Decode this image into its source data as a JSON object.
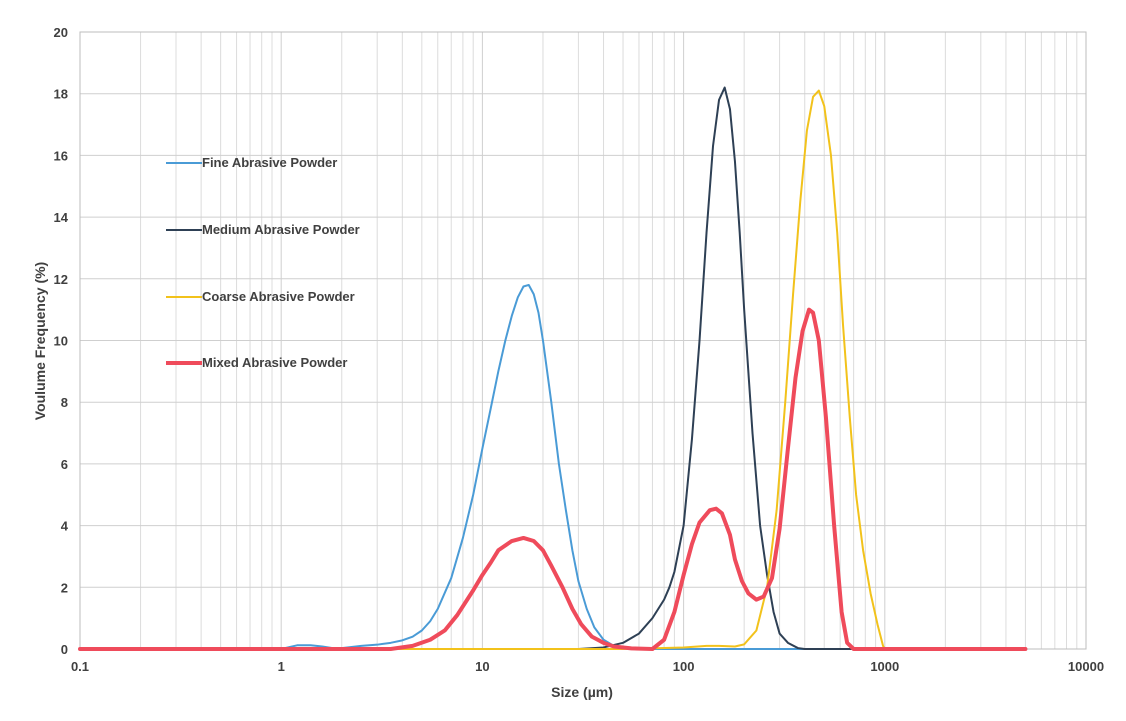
{
  "chart_data": {
    "type": "line",
    "title": "",
    "xlabel": "Size (µm)",
    "ylabel": "Voulume Frequency (%)",
    "x_scale": "log",
    "xlim": [
      0.1,
      10000
    ],
    "ylim": [
      0,
      20
    ],
    "x_ticks": [
      "0.1",
      "1",
      "10",
      "100",
      "1000",
      "10000"
    ],
    "y_ticks": [
      "0",
      "2",
      "4",
      "6",
      "8",
      "10",
      "12",
      "14",
      "16",
      "18",
      "20"
    ],
    "grid": true,
    "legend_position": "upper-left",
    "series": [
      {
        "name": "Fine Abrasive Powder",
        "color": "#4a9bd6",
        "points": [
          [
            0.1,
            0
          ],
          [
            1.0,
            0
          ],
          [
            1.2,
            0.12
          ],
          [
            1.4,
            0.12
          ],
          [
            1.6,
            0.08
          ],
          [
            1.8,
            0.03
          ],
          [
            2.0,
            0.03
          ],
          [
            2.5,
            0.1
          ],
          [
            3.0,
            0.14
          ],
          [
            3.5,
            0.2
          ],
          [
            4.0,
            0.28
          ],
          [
            4.5,
            0.4
          ],
          [
            5.0,
            0.6
          ],
          [
            5.5,
            0.9
          ],
          [
            6.0,
            1.3
          ],
          [
            7.0,
            2.3
          ],
          [
            8.0,
            3.6
          ],
          [
            9.0,
            5.0
          ],
          [
            10.0,
            6.5
          ],
          [
            11.0,
            7.8
          ],
          [
            12.0,
            9.0
          ],
          [
            13.0,
            10.0
          ],
          [
            14.0,
            10.8
          ],
          [
            15.0,
            11.4
          ],
          [
            16.0,
            11.75
          ],
          [
            17.0,
            11.8
          ],
          [
            18.0,
            11.5
          ],
          [
            19.0,
            10.9
          ],
          [
            20.0,
            10.0
          ],
          [
            22.0,
            8.0
          ],
          [
            24.0,
            6.0
          ],
          [
            26.0,
            4.5
          ],
          [
            28.0,
            3.2
          ],
          [
            30.0,
            2.2
          ],
          [
            33.0,
            1.3
          ],
          [
            36.0,
            0.7
          ],
          [
            40.0,
            0.3
          ],
          [
            45.0,
            0.1
          ],
          [
            50.0,
            0.02
          ],
          [
            60.0,
            0
          ],
          [
            1000,
            0
          ]
        ]
      },
      {
        "name": "Medium Abrasive Powder",
        "color": "#2e4055",
        "points": [
          [
            0.1,
            0
          ],
          [
            30,
            0
          ],
          [
            40,
            0.05
          ],
          [
            50,
            0.2
          ],
          [
            60,
            0.5
          ],
          [
            70,
            1.0
          ],
          [
            80,
            1.6
          ],
          [
            85,
            2.0
          ],
          [
            90,
            2.5
          ],
          [
            100,
            4.0
          ],
          [
            110,
            6.8
          ],
          [
            120,
            10.0
          ],
          [
            130,
            13.5
          ],
          [
            140,
            16.3
          ],
          [
            150,
            17.8
          ],
          [
            160,
            18.2
          ],
          [
            170,
            17.5
          ],
          [
            180,
            15.8
          ],
          [
            190,
            13.5
          ],
          [
            200,
            11.0
          ],
          [
            220,
            7.0
          ],
          [
            240,
            4.0
          ],
          [
            260,
            2.4
          ],
          [
            280,
            1.2
          ],
          [
            300,
            0.5
          ],
          [
            330,
            0.2
          ],
          [
            370,
            0.03
          ],
          [
            400,
            0
          ],
          [
            5000,
            0
          ]
        ]
      },
      {
        "name": "Coarse Abrasive Powder",
        "color": "#f2c21b",
        "points": [
          [
            0.1,
            0
          ],
          [
            50,
            0
          ],
          [
            100,
            0.05
          ],
          [
            130,
            0.1
          ],
          [
            150,
            0.1
          ],
          [
            180,
            0.08
          ],
          [
            200,
            0.15
          ],
          [
            230,
            0.6
          ],
          [
            260,
            2.0
          ],
          [
            290,
            4.5
          ],
          [
            320,
            8.0
          ],
          [
            350,
            11.5
          ],
          [
            380,
            14.5
          ],
          [
            410,
            16.8
          ],
          [
            440,
            17.9
          ],
          [
            470,
            18.1
          ],
          [
            500,
            17.6
          ],
          [
            540,
            16.0
          ],
          [
            580,
            13.5
          ],
          [
            620,
            10.5
          ],
          [
            670,
            7.5
          ],
          [
            720,
            5.0
          ],
          [
            780,
            3.2
          ],
          [
            850,
            1.8
          ],
          [
            920,
            0.8
          ],
          [
            980,
            0.1
          ],
          [
            1000,
            0
          ]
        ]
      },
      {
        "name": "Mixed Abrasive Powder",
        "color": "#ef4b5b",
        "points": [
          [
            0.1,
            0
          ],
          [
            3.5,
            0
          ],
          [
            4.5,
            0.1
          ],
          [
            5.5,
            0.3
          ],
          [
            6.5,
            0.6
          ],
          [
            7.5,
            1.1
          ],
          [
            9.0,
            1.9
          ],
          [
            10.0,
            2.4
          ],
          [
            11.0,
            2.8
          ],
          [
            12.0,
            3.2
          ],
          [
            14.0,
            3.5
          ],
          [
            16.0,
            3.6
          ],
          [
            18.0,
            3.5
          ],
          [
            20.0,
            3.2
          ],
          [
            22.0,
            2.7
          ],
          [
            25.0,
            2.0
          ],
          [
            28.0,
            1.3
          ],
          [
            31.0,
            0.8
          ],
          [
            35.0,
            0.4
          ],
          [
            40.0,
            0.2
          ],
          [
            45.0,
            0.08
          ],
          [
            55.0,
            0.02
          ],
          [
            70.0,
            0
          ],
          [
            80.0,
            0.3
          ],
          [
            90.0,
            1.2
          ],
          [
            100.0,
            2.4
          ],
          [
            110.0,
            3.4
          ],
          [
            120.0,
            4.1
          ],
          [
            135.0,
            4.5
          ],
          [
            145.0,
            4.55
          ],
          [
            155.0,
            4.4
          ],
          [
            170.0,
            3.7
          ],
          [
            180.0,
            2.9
          ],
          [
            195.0,
            2.2
          ],
          [
            210.0,
            1.8
          ],
          [
            230.0,
            1.6
          ],
          [
            250.0,
            1.7
          ],
          [
            275.0,
            2.3
          ],
          [
            300.0,
            3.9
          ],
          [
            330.0,
            6.5
          ],
          [
            360.0,
            8.8
          ],
          [
            390.0,
            10.3
          ],
          [
            420.0,
            11.0
          ],
          [
            440.0,
            10.9
          ],
          [
            470.0,
            10.0
          ],
          [
            510.0,
            7.5
          ],
          [
            560.0,
            4.0
          ],
          [
            610.0,
            1.2
          ],
          [
            650.0,
            0.2
          ],
          [
            700.0,
            0
          ],
          [
            5000,
            0
          ]
        ]
      }
    ]
  }
}
